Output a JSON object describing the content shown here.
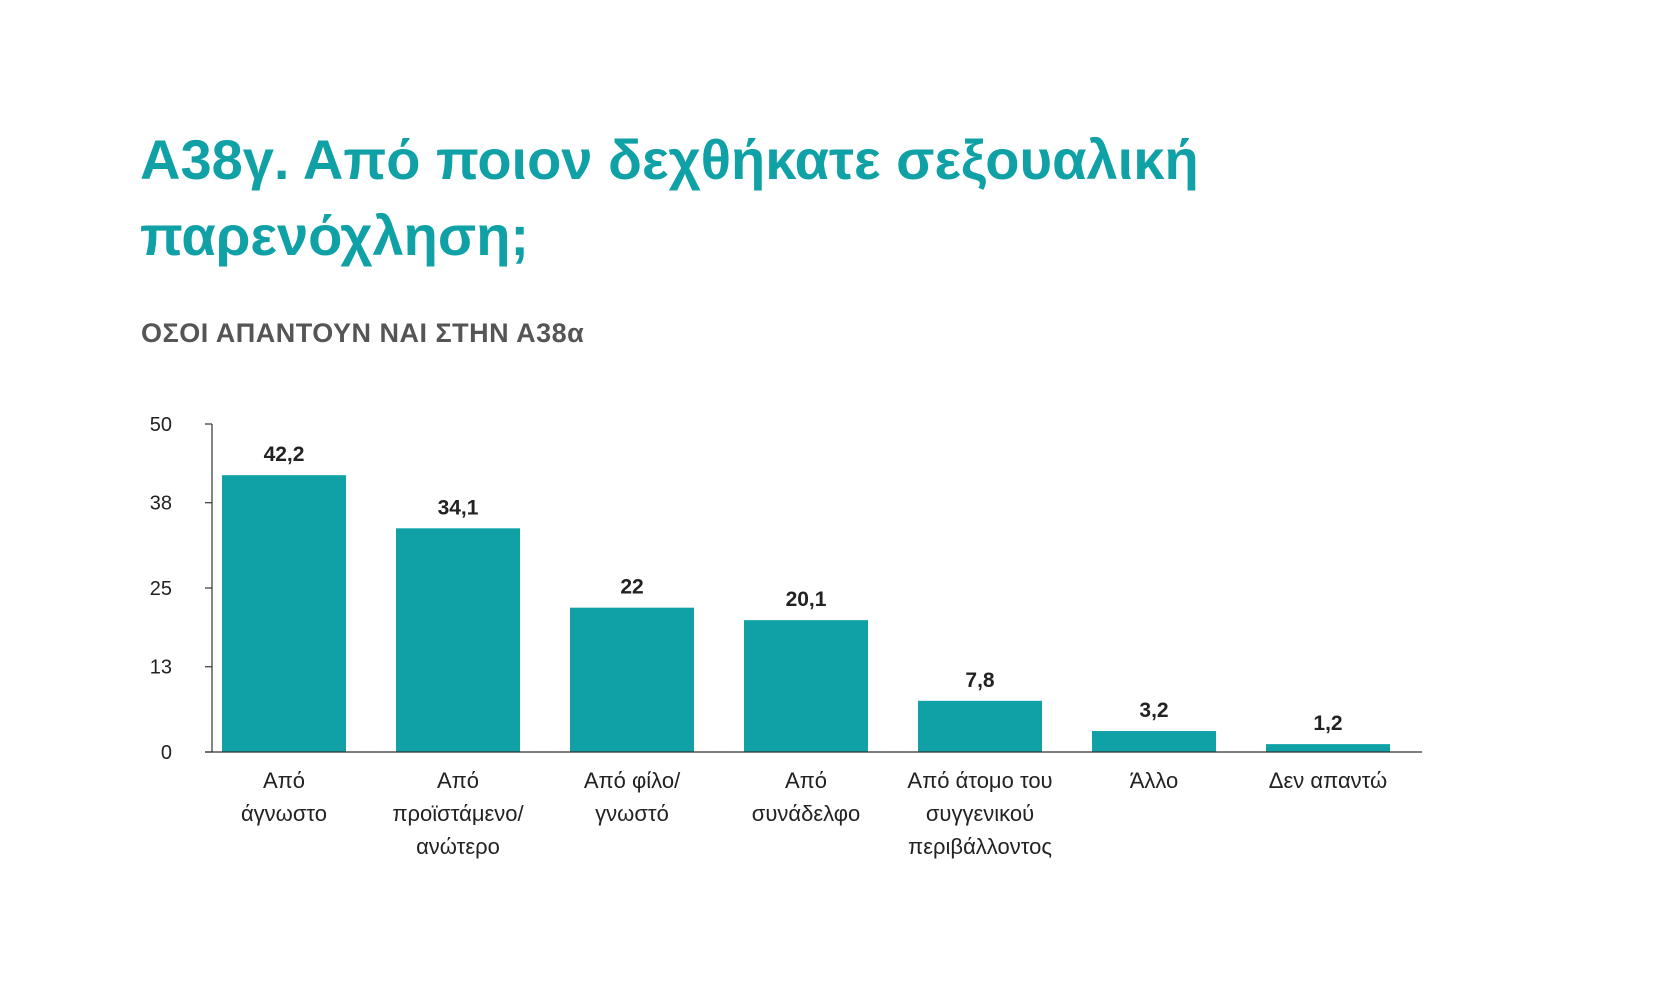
{
  "title_lines": [
    "A38γ. Από ποιον δεχθήκατε σεξουαλική",
    "παρενόχληση;"
  ],
  "subtitle": "ΟΣΟΙ ΑΠΑΝΤΟΥΝ ΝΑΙ ΣΤΗΝ Α38α",
  "colors": {
    "bar": "#0fa1a6",
    "title": "#0fa1a6",
    "subtitle": "#555555",
    "axis": "#333333"
  },
  "chart_data": {
    "type": "bar",
    "title": "",
    "xlabel": "",
    "ylabel": "",
    "ylim": [
      0,
      50
    ],
    "yticks": [
      0,
      13,
      25,
      38,
      50
    ],
    "grid": false,
    "categories": [
      [
        "Από",
        "άγνωστο"
      ],
      [
        "Από",
        "προϊστάμενο/",
        "ανώτερο"
      ],
      [
        "Από φίλο/",
        "γνωστό"
      ],
      [
        "Από",
        "συνάδελφο"
      ],
      [
        "Από άτομο του",
        "συγγενικού",
        "περιβάλλοντος"
      ],
      [
        "Άλλο"
      ],
      [
        "Δεν απαντώ"
      ]
    ],
    "values": [
      42.2,
      34.1,
      22,
      20.1,
      7.8,
      3.2,
      1.2
    ],
    "value_labels": [
      "42,2",
      "34,1",
      "22",
      "20,1",
      "7,8",
      "3,2",
      "1,2"
    ]
  }
}
